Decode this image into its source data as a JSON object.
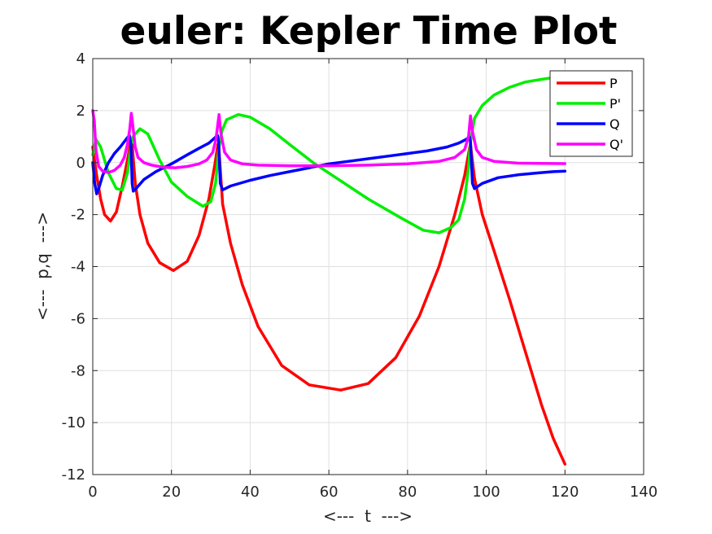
{
  "chart_data": {
    "type": "line",
    "title": "euler: Kepler Time Plot",
    "xlabel": "<---  t  --->",
    "ylabel": "<---  p,q  --->",
    "xlim": [
      0,
      140
    ],
    "ylim": [
      -12,
      4
    ],
    "xticks": [
      "0",
      "20",
      "40",
      "60",
      "80",
      "100",
      "120",
      "140"
    ],
    "yticks": [
      "4",
      "2",
      "0",
      "-2",
      "-4",
      "-6",
      "-8",
      "-10",
      "-12"
    ],
    "grid": true,
    "legend_position": "top-right",
    "series": [
      {
        "name": "P",
        "color": "#ff0000",
        "x": [
          0,
          1,
          2,
          3,
          4.5,
          6,
          7.5,
          8.8,
          9.6,
          10,
          10.8,
          12,
          14,
          17,
          20.5,
          24,
          27,
          29.5,
          31,
          31.8,
          32,
          33,
          35,
          38,
          42,
          48,
          55,
          63,
          70,
          77,
          83,
          88,
          92,
          94.5,
          95.8,
          96,
          97,
          99,
          102,
          106,
          110,
          114,
          117,
          120
        ],
        "y": [
          0.6,
          -0.5,
          -1.4,
          -2.0,
          -2.25,
          -1.9,
          -0.9,
          0.1,
          0.75,
          0.7,
          -0.8,
          -2.0,
          -3.1,
          -3.85,
          -4.15,
          -3.8,
          -2.8,
          -1.4,
          -0.1,
          0.7,
          0.7,
          -1.6,
          -3.1,
          -4.7,
          -6.3,
          -7.8,
          -8.55,
          -8.75,
          -8.5,
          -7.5,
          -5.9,
          -4.0,
          -2.0,
          -0.5,
          0.6,
          0.7,
          -0.6,
          -2.0,
          -3.4,
          -5.3,
          -7.3,
          -9.3,
          -10.6,
          -11.6
        ]
      },
      {
        "name": "P'",
        "color": "#00ee00",
        "x": [
          0,
          0.8,
          2,
          4,
          6,
          7.5,
          8.8,
          9.6,
          10,
          10.8,
          12,
          14,
          17,
          20,
          24,
          28,
          30,
          31.2,
          32,
          32.8,
          34,
          37,
          40,
          45,
          50,
          56,
          62,
          70,
          78,
          84,
          88,
          91,
          93,
          94.5,
          95.5,
          96,
          97,
          99,
          102,
          106,
          110,
          114,
          117,
          120
        ],
        "y": [
          0.3,
          0.9,
          0.6,
          -0.4,
          -1.0,
          -1.05,
          -0.4,
          0.5,
          0.95,
          1.1,
          1.3,
          1.1,
          0.1,
          -0.75,
          -1.3,
          -1.68,
          -1.5,
          -0.8,
          0.5,
          1.2,
          1.65,
          1.85,
          1.75,
          1.3,
          0.7,
          0.0,
          -0.6,
          -1.4,
          -2.1,
          -2.6,
          -2.7,
          -2.5,
          -2.2,
          -1.4,
          -0.2,
          0.8,
          1.7,
          2.2,
          2.6,
          2.9,
          3.1,
          3.2,
          3.27,
          3.32
        ]
      },
      {
        "name": "Q",
        "color": "#0000ff",
        "x": [
          0,
          0.5,
          1,
          1.5,
          2.5,
          4,
          5.5,
          7,
          8.5,
          9.3,
          9.7,
          10,
          10.3,
          11,
          13,
          16,
          20,
          24,
          27,
          29.5,
          31,
          31.7,
          32,
          32.4,
          33,
          35,
          40,
          45,
          50,
          55,
          60,
          65,
          70,
          75,
          80,
          85,
          90,
          93,
          95,
          95.7,
          96,
          96.5,
          97,
          99,
          103,
          108,
          113,
          117,
          120
        ],
        "y": [
          0.0,
          -0.8,
          -1.2,
          -1.0,
          -0.5,
          0.0,
          0.35,
          0.6,
          0.9,
          1.05,
          0.7,
          -0.8,
          -1.1,
          -1.0,
          -0.65,
          -0.35,
          -0.05,
          0.3,
          0.55,
          0.75,
          0.95,
          1.05,
          0.8,
          -0.8,
          -1.05,
          -0.9,
          -0.68,
          -0.5,
          -0.35,
          -0.2,
          -0.05,
          0.05,
          0.15,
          0.25,
          0.35,
          0.45,
          0.6,
          0.75,
          0.9,
          1.0,
          0.8,
          -0.8,
          -1.0,
          -0.8,
          -0.58,
          -0.47,
          -0.4,
          -0.35,
          -0.33
        ]
      },
      {
        "name": "Q'",
        "color": "#ff00ff",
        "x": [
          0,
          0.4,
          0.8,
          1.5,
          2.5,
          4,
          5.5,
          7,
          8,
          8.8,
          9.4,
          9.8,
          10.2,
          10.8,
          11.5,
          13,
          15,
          18,
          21,
          24,
          27,
          29,
          30.5,
          31.3,
          31.8,
          32.1,
          32.6,
          33.5,
          35,
          38,
          42,
          50,
          60,
          70,
          80,
          88,
          92,
          94.5,
          95.5,
          96,
          96.5,
          97.5,
          99,
          102,
          108,
          114,
          120
        ],
        "y": [
          2.0,
          1.6,
          0.5,
          -0.15,
          -0.33,
          -0.38,
          -0.3,
          -0.1,
          0.2,
          0.7,
          1.3,
          1.9,
          1.4,
          0.6,
          0.2,
          0.0,
          -0.1,
          -0.18,
          -0.2,
          -0.15,
          -0.05,
          0.1,
          0.4,
          0.9,
          1.5,
          1.85,
          1.1,
          0.4,
          0.1,
          -0.05,
          -0.1,
          -0.12,
          -0.12,
          -0.1,
          -0.05,
          0.05,
          0.2,
          0.5,
          1.0,
          1.8,
          1.2,
          0.5,
          0.2,
          0.05,
          -0.02,
          -0.03,
          -0.04
        ]
      }
    ]
  }
}
